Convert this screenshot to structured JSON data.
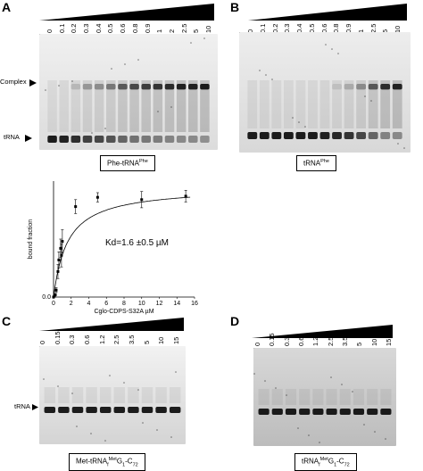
{
  "panels": {
    "A": {
      "letter": "A",
      "concentrations": [
        "0",
        "0.1",
        "0.2",
        "0.3",
        "0.4",
        "0.5",
        "0.6",
        "0.8",
        "0.9",
        "1",
        "2",
        "2.5",
        "5",
        "10"
      ],
      "complex_label": "Complex",
      "trna_label": "tRNA",
      "caption_main": "Phe-tRNA",
      "caption_sup": "Phe"
    },
    "B": {
      "letter": "B",
      "concentrations": [
        "0",
        "0.1",
        "0.2",
        "0.3",
        "0.4",
        "0.5",
        "0.6",
        "0.8",
        "0.9",
        "1",
        "2.5",
        "5",
        "10"
      ],
      "caption_main": "tRNA",
      "caption_sup": "Phe"
    },
    "C": {
      "letter": "C",
      "concentrations": [
        "0",
        "0.15",
        "0.3",
        "0.6",
        "1.2",
        "2.5",
        "3.5",
        "5",
        "10",
        "15"
      ],
      "trna_label": "tRNA",
      "caption_pre": "Met-tRNA",
      "caption_sub1": "f",
      "caption_sup": "Met",
      "caption_mid": "G",
      "caption_sub2": "1",
      "caption_post": "-C",
      "caption_sub3": "72"
    },
    "D": {
      "letter": "D",
      "concentrations": [
        "0",
        "0.15",
        "0.3",
        "0.6",
        "1.2",
        "2.5",
        "3.5",
        "5",
        "10",
        "15"
      ],
      "caption_pre": "tRNA",
      "caption_sub1": "f",
      "caption_sup": "Met",
      "caption_mid": "G",
      "caption_sub2": "1",
      "caption_post": "-C",
      "caption_sub3": "72"
    }
  },
  "chart_data": {
    "type": "scatter",
    "xlabel": "Cglo-CDPS-S32A µM",
    "ylabel": "bound fraction",
    "xlim": [
      0,
      16
    ],
    "ylim": [
      0,
      1.0
    ],
    "xticks": [
      "0",
      "2",
      "4",
      "6",
      "8",
      "10",
      "12",
      "14",
      "16"
    ],
    "yticks": [
      "0.0"
    ],
    "annotation": "Kd=1.6 ±0.5 µM",
    "points": [
      {
        "x": 0,
        "y": 0.0,
        "err": 0.0
      },
      {
        "x": 0.1,
        "y": 0.01,
        "err": 0.01
      },
      {
        "x": 0.2,
        "y": 0.02,
        "err": 0.01
      },
      {
        "x": 0.3,
        "y": 0.06,
        "err": 0.02
      },
      {
        "x": 0.5,
        "y": 0.22,
        "err": 0.06
      },
      {
        "x": 0.6,
        "y": 0.32,
        "err": 0.07
      },
      {
        "x": 0.8,
        "y": 0.42,
        "err": 0.08
      },
      {
        "x": 0.9,
        "y": 0.36,
        "err": 0.1
      },
      {
        "x": 1.0,
        "y": 0.48,
        "err": 0.1
      },
      {
        "x": 2.5,
        "y": 0.78,
        "err": 0.06
      },
      {
        "x": 5,
        "y": 0.86,
        "err": 0.04
      },
      {
        "x": 10,
        "y": 0.84,
        "err": 0.07
      },
      {
        "x": 15,
        "y": 0.87,
        "err": 0.05
      }
    ],
    "fit": {
      "model": "hyperbolic",
      "bmax": 1.0,
      "kd": 1.6
    }
  }
}
